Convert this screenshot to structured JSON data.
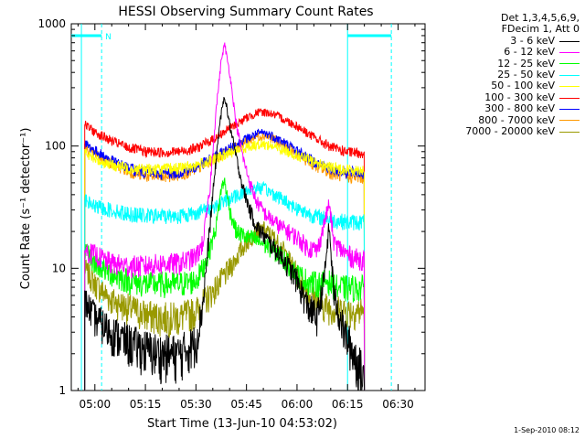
{
  "chart_data": {
    "type": "line",
    "title": "HESSI Observing Summary Count Rates",
    "xlabel": "Start Time (13-Jun-10 04:53:02)",
    "ylabel": "Count Rate (s⁻¹ detector⁻¹)",
    "yscale": "log",
    "ylim": [
      1,
      1000
    ],
    "xlim_minutes": [
      -7,
      98
    ],
    "x_unit": "minutes after 05:00",
    "xticks": [
      {
        "label": "05:00",
        "minute": 0
      },
      {
        "label": "05:15",
        "minute": 15
      },
      {
        "label": "05:30",
        "minute": 30
      },
      {
        "label": "05:45",
        "minute": 45
      },
      {
        "label": "06:00",
        "minute": 60
      },
      {
        "label": "06:15",
        "minute": 75
      },
      {
        "label": "06:30",
        "minute": 90
      }
    ],
    "yticks": [
      {
        "label": "1",
        "value": 1
      },
      {
        "label": "10",
        "value": 10
      },
      {
        "label": "100",
        "value": 100
      },
      {
        "label": "1000",
        "value": 1000
      }
    ],
    "legend_header": [
      "Det 1,3,4,5,6,9,",
      "FDecim 1, Att 0"
    ],
    "legend_position": "right, outside plot",
    "series": [
      {
        "name": "3 - 6 keV",
        "color": "#000000",
        "points": [
          [
            -3,
            5.5
          ],
          [
            0,
            4
          ],
          [
            5,
            3
          ],
          [
            10,
            2.5
          ],
          [
            15,
            2.2
          ],
          [
            20,
            2
          ],
          [
            25,
            2
          ],
          [
            30,
            2.5
          ],
          [
            32,
            5
          ],
          [
            35,
            40
          ],
          [
            37,
            150
          ],
          [
            38.5,
            260
          ],
          [
            40,
            150
          ],
          [
            42,
            80
          ],
          [
            44,
            45
          ],
          [
            46,
            30
          ],
          [
            48,
            22
          ],
          [
            52,
            16
          ],
          [
            56,
            12
          ],
          [
            60,
            8
          ],
          [
            63,
            5
          ],
          [
            66,
            4
          ],
          [
            68,
            8
          ],
          [
            69.5,
            22
          ],
          [
            71,
            6
          ],
          [
            74,
            3
          ],
          [
            77,
            2
          ],
          [
            80,
            1.2
          ]
        ]
      },
      {
        "name": "6 - 12 keV",
        "color": "#ff00ff",
        "points": [
          [
            -3,
            14
          ],
          [
            0,
            13
          ],
          [
            5,
            11
          ],
          [
            10,
            10.5
          ],
          [
            15,
            10.5
          ],
          [
            20,
            11
          ],
          [
            25,
            11
          ],
          [
            30,
            12.5
          ],
          [
            32,
            16
          ],
          [
            34,
            40
          ],
          [
            36,
            200
          ],
          [
            37.5,
            500
          ],
          [
            38.5,
            680
          ],
          [
            40,
            400
          ],
          [
            42,
            150
          ],
          [
            44,
            80
          ],
          [
            46,
            50
          ],
          [
            48,
            35
          ],
          [
            51,
            27
          ],
          [
            55,
            22
          ],
          [
            60,
            18
          ],
          [
            63,
            15
          ],
          [
            66,
            14
          ],
          [
            67.5,
            20
          ],
          [
            69.5,
            34
          ],
          [
            71,
            16
          ],
          [
            75,
            13
          ],
          [
            78,
            12
          ],
          [
            80,
            12
          ]
        ]
      },
      {
        "name": "12 - 25 keV",
        "color": "#00ff00",
        "points": [
          [
            -3,
            14
          ],
          [
            0,
            11
          ],
          [
            5,
            9
          ],
          [
            10,
            8
          ],
          [
            15,
            7.5
          ],
          [
            20,
            7.5
          ],
          [
            25,
            7.5
          ],
          [
            30,
            8
          ],
          [
            32,
            10
          ],
          [
            34,
            14
          ],
          [
            36,
            22
          ],
          [
            37.5,
            45
          ],
          [
            38.5,
            52
          ],
          [
            40,
            30
          ],
          [
            42,
            20
          ],
          [
            45,
            18
          ],
          [
            48,
            17
          ],
          [
            52,
            15
          ],
          [
            56,
            12
          ],
          [
            60,
            9
          ],
          [
            63,
            8
          ],
          [
            66,
            7.5
          ],
          [
            69,
            8
          ],
          [
            72,
            7
          ],
          [
            76,
            7
          ],
          [
            80,
            7
          ]
        ]
      },
      {
        "name": "25 - 50 keV",
        "color": "#00ffff",
        "points": [
          [
            -3,
            36
          ],
          [
            0,
            32
          ],
          [
            5,
            30
          ],
          [
            10,
            28
          ],
          [
            15,
            27
          ],
          [
            20,
            27
          ],
          [
            25,
            27
          ],
          [
            30,
            28.5
          ],
          [
            35,
            32
          ],
          [
            40,
            37
          ],
          [
            45,
            43
          ],
          [
            48,
            46
          ],
          [
            50,
            45
          ],
          [
            55,
            38
          ],
          [
            60,
            31
          ],
          [
            65,
            27
          ],
          [
            70,
            25
          ],
          [
            75,
            24
          ],
          [
            80,
            24
          ]
        ]
      },
      {
        "name": "50 - 100 keV",
        "color": "#ffff00",
        "points": [
          [
            -3,
            88
          ],
          [
            0,
            78
          ],
          [
            5,
            70
          ],
          [
            10,
            66
          ],
          [
            15,
            65
          ],
          [
            20,
            65
          ],
          [
            25,
            66
          ],
          [
            30,
            70
          ],
          [
            35,
            77
          ],
          [
            40,
            88
          ],
          [
            45,
            98
          ],
          [
            48,
            103
          ],
          [
            50,
            104
          ],
          [
            52,
            101
          ],
          [
            55,
            95
          ],
          [
            60,
            84
          ],
          [
            65,
            74
          ],
          [
            70,
            67
          ],
          [
            75,
            64
          ],
          [
            80,
            64
          ]
        ]
      },
      {
        "name": "100 - 300 keV",
        "color": "#ff0000",
        "points": [
          [
            -3,
            150
          ],
          [
            0,
            130
          ],
          [
            5,
            110
          ],
          [
            10,
            97
          ],
          [
            15,
            90
          ],
          [
            20,
            89
          ],
          [
            25,
            90
          ],
          [
            30,
            96
          ],
          [
            35,
            113
          ],
          [
            40,
            140
          ],
          [
            45,
            170
          ],
          [
            48,
            187
          ],
          [
            50,
            190
          ],
          [
            52,
            186
          ],
          [
            55,
            172
          ],
          [
            60,
            146
          ],
          [
            65,
            118
          ],
          [
            70,
            98
          ],
          [
            75,
            89
          ],
          [
            80,
            88
          ]
        ]
      },
      {
        "name": "300 - 800 keV",
        "color": "#0000ff",
        "points": [
          [
            -3,
            105
          ],
          [
            0,
            92
          ],
          [
            5,
            76
          ],
          [
            10,
            66
          ],
          [
            15,
            61
          ],
          [
            20,
            60
          ],
          [
            25,
            61
          ],
          [
            30,
            67
          ],
          [
            35,
            80
          ],
          [
            40,
            96
          ],
          [
            45,
            115
          ],
          [
            48,
            125
          ],
          [
            50,
            128
          ],
          [
            52,
            124
          ],
          [
            55,
            112
          ],
          [
            60,
            92
          ],
          [
            65,
            75
          ],
          [
            70,
            65
          ],
          [
            75,
            61
          ],
          [
            80,
            60
          ]
        ]
      },
      {
        "name": "800 - 7000 keV",
        "color": "#ff9900",
        "points": [
          [
            -3,
            95
          ],
          [
            0,
            86
          ],
          [
            5,
            72
          ],
          [
            10,
            62
          ],
          [
            15,
            57
          ],
          [
            20,
            56
          ],
          [
            25,
            58
          ],
          [
            30,
            64
          ],
          [
            35,
            77
          ],
          [
            40,
            93
          ],
          [
            45,
            110
          ],
          [
            48,
            120
          ],
          [
            50,
            122
          ],
          [
            52,
            118
          ],
          [
            55,
            106
          ],
          [
            60,
            86
          ],
          [
            65,
            70
          ],
          [
            70,
            60
          ],
          [
            75,
            56
          ],
          [
            80,
            55
          ]
        ]
      },
      {
        "name": "7000 - 20000 keV",
        "color": "#999900",
        "points": [
          [
            -3,
            10
          ],
          [
            0,
            7.5
          ],
          [
            5,
            5.5
          ],
          [
            10,
            4.8
          ],
          [
            15,
            4.2
          ],
          [
            20,
            4
          ],
          [
            25,
            4
          ],
          [
            30,
            4.5
          ],
          [
            35,
            6.5
          ],
          [
            40,
            10
          ],
          [
            44,
            15
          ],
          [
            47,
            19
          ],
          [
            50,
            21
          ],
          [
            53,
            18
          ],
          [
            56,
            14
          ],
          [
            60,
            9
          ],
          [
            64,
            6
          ],
          [
            68,
            5
          ],
          [
            72,
            4.6
          ],
          [
            76,
            4.5
          ],
          [
            80,
            4.5
          ]
        ]
      }
    ],
    "spacecraft_markers": {
      "color": "#00ffff",
      "night_bars": [
        [
          -7,
          2
        ],
        [
          75,
          88
        ]
      ],
      "bar_level": 800,
      "bar_label": "N",
      "solid_lines_minutes": [
        -4,
        75
      ],
      "dashed_lines_minutes": [
        2,
        88
      ]
    },
    "data_window_minutes": [
      -3,
      80
    ],
    "grid": false
  },
  "timestamp": "1-Sep-2010 08:12"
}
